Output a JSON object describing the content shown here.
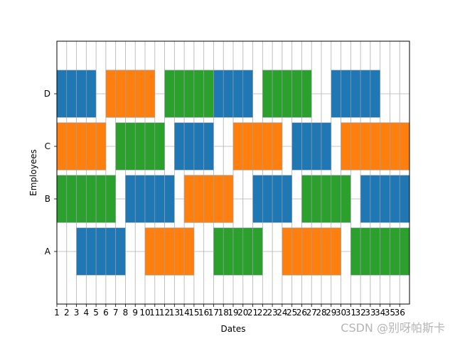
{
  "chart_data": {
    "type": "gantt",
    "xlabel": "Dates",
    "ylabel": "Employees",
    "xlim": [
      1,
      37
    ],
    "ylim": [
      -1,
      4
    ],
    "x_ticks": [
      1,
      2,
      3,
      4,
      5,
      6,
      7,
      8,
      9,
      10,
      11,
      12,
      13,
      14,
      15,
      16,
      17,
      18,
      19,
      20,
      21,
      22,
      23,
      24,
      25,
      26,
      27,
      28,
      29,
      30,
      31,
      32,
      33,
      34,
      35,
      36
    ],
    "employees": [
      "A",
      "B",
      "C",
      "D"
    ],
    "grid": true,
    "colors": {
      "blue": "#1f77b4",
      "orange": "#ff7f0e",
      "green": "#2ca02c"
    },
    "tasks": [
      {
        "employee": "A",
        "start": 3,
        "end": 8,
        "color": "blue"
      },
      {
        "employee": "A",
        "start": 10,
        "end": 15,
        "color": "orange"
      },
      {
        "employee": "A",
        "start": 17,
        "end": 22,
        "color": "green"
      },
      {
        "employee": "A",
        "start": 24,
        "end": 30,
        "color": "orange"
      },
      {
        "employee": "A",
        "start": 31,
        "end": 37,
        "color": "green"
      },
      {
        "employee": "B",
        "start": 1,
        "end": 7,
        "color": "green"
      },
      {
        "employee": "B",
        "start": 8,
        "end": 13,
        "color": "blue"
      },
      {
        "employee": "B",
        "start": 14,
        "end": 19,
        "color": "orange"
      },
      {
        "employee": "B",
        "start": 21,
        "end": 25,
        "color": "blue"
      },
      {
        "employee": "B",
        "start": 26,
        "end": 31,
        "color": "green"
      },
      {
        "employee": "B",
        "start": 32,
        "end": 37,
        "color": "blue"
      },
      {
        "employee": "C",
        "start": 1,
        "end": 6,
        "color": "orange"
      },
      {
        "employee": "C",
        "start": 7,
        "end": 12,
        "color": "green"
      },
      {
        "employee": "C",
        "start": 13,
        "end": 17,
        "color": "blue"
      },
      {
        "employee": "C",
        "start": 19,
        "end": 24,
        "color": "orange"
      },
      {
        "employee": "C",
        "start": 25,
        "end": 29,
        "color": "blue"
      },
      {
        "employee": "C",
        "start": 30,
        "end": 37,
        "color": "orange"
      },
      {
        "employee": "D",
        "start": 1,
        "end": 5,
        "color": "blue"
      },
      {
        "employee": "D",
        "start": 6,
        "end": 11,
        "color": "orange"
      },
      {
        "employee": "D",
        "start": 12,
        "end": 17,
        "color": "green"
      },
      {
        "employee": "D",
        "start": 17,
        "end": 21,
        "color": "blue"
      },
      {
        "employee": "D",
        "start": 22,
        "end": 27,
        "color": "green"
      },
      {
        "employee": "D",
        "start": 29,
        "end": 34,
        "color": "blue"
      }
    ]
  },
  "watermark": "CSDN @别呀帕斯卡"
}
